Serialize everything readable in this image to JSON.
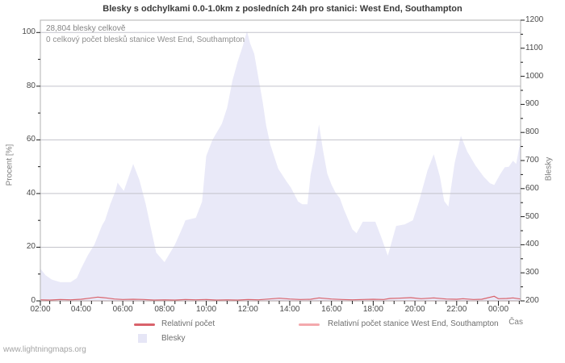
{
  "watermark": "www.lightningmaps.org",
  "colors": {
    "area_fill": "#e9e9f8",
    "line_relative": "#d9626b",
    "line_station": "#f4a9ad",
    "grid": "#c3c3cb",
    "frame": "#b2b2b2",
    "tick": "#1a1a1a"
  },
  "chart_data": {
    "type": "area",
    "title": "Blesky s odchylkami 0.0-1.0km z posledních 24h pro stanici: West End, Southampton",
    "annotations": {
      "total": "28,804 blesky celkově",
      "station_total": "0 celkový počet blesků stanice West End, Southampton"
    },
    "x_axis": {
      "label": "Čas",
      "ticks": [
        "02:00",
        "04:00",
        "06:00",
        "08:00",
        "10:00",
        "12:00",
        "14:00",
        "16:00",
        "18:00",
        "20:00",
        "22:00",
        "00:00"
      ],
      "tick_hours": [
        2,
        4,
        6,
        8,
        10,
        12,
        14,
        16,
        18,
        20,
        22,
        24
      ],
      "hours_range": [
        2,
        25.08
      ],
      "minor_tick_every_hours": 0.5
    },
    "y_left": {
      "label": "Procent  [%]",
      "ticks": [
        0,
        20,
        40,
        60,
        80,
        100
      ],
      "range": [
        0,
        100
      ]
    },
    "y_right": {
      "label": "Blesky",
      "ticks": [
        200,
        300,
        400,
        500,
        600,
        700,
        800,
        900,
        1000,
        1100,
        1200
      ],
      "range": [
        200,
        1200
      ],
      "minor_tick_step": 50
    },
    "legend_position": "bottom-center",
    "grid": "horizontal-only",
    "series": [
      {
        "name": "Blesky",
        "type": "area",
        "axis": "right",
        "color": "#e9e9f8",
        "points": [
          [
            2.0,
            315
          ],
          [
            2.3,
            291
          ],
          [
            2.6,
            276
          ],
          [
            3.0,
            267
          ],
          [
            3.5,
            267
          ],
          [
            3.8,
            281
          ],
          [
            4.0,
            315
          ],
          [
            4.33,
            363
          ],
          [
            4.64,
            401
          ],
          [
            5.0,
            468
          ],
          [
            5.15,
            487
          ],
          [
            5.4,
            544
          ],
          [
            5.65,
            592
          ],
          [
            5.75,
            621
          ],
          [
            6.05,
            592
          ],
          [
            6.5,
            688
          ],
          [
            6.8,
            630
          ],
          [
            7.1,
            544
          ],
          [
            7.35,
            458
          ],
          [
            7.6,
            372
          ],
          [
            8.0,
            338
          ],
          [
            8.5,
            401
          ],
          [
            8.9,
            468
          ],
          [
            9.0,
            487
          ],
          [
            9.5,
            496
          ],
          [
            9.8,
            554
          ],
          [
            10.0,
            716
          ],
          [
            10.3,
            774
          ],
          [
            10.75,
            831
          ],
          [
            11.0,
            888
          ],
          [
            11.25,
            984
          ],
          [
            11.5,
            1051
          ],
          [
            11.75,
            1108
          ],
          [
            11.95,
            1161
          ],
          [
            12.1,
            1118
          ],
          [
            12.3,
            1080
          ],
          [
            12.5,
            994
          ],
          [
            12.7,
            912
          ],
          [
            12.87,
            826
          ],
          [
            13.07,
            757
          ],
          [
            13.45,
            671
          ],
          [
            13.85,
            625
          ],
          [
            14.05,
            604
          ],
          [
            14.4,
            554
          ],
          [
            14.6,
            544
          ],
          [
            14.85,
            544
          ],
          [
            15.0,
            649
          ],
          [
            15.2,
            726
          ],
          [
            15.4,
            829
          ],
          [
            15.6,
            735
          ],
          [
            15.8,
            653
          ],
          [
            16.0,
            614
          ],
          [
            16.2,
            585
          ],
          [
            16.4,
            566
          ],
          [
            16.6,
            525
          ],
          [
            17.0,
            455
          ],
          [
            17.2,
            441
          ],
          [
            17.5,
            482
          ],
          [
            18.1,
            482
          ],
          [
            18.4,
            424
          ],
          [
            18.7,
            361
          ],
          [
            19.1,
            467
          ],
          [
            19.5,
            472
          ],
          [
            19.9,
            487
          ],
          [
            20.2,
            556
          ],
          [
            20.6,
            664
          ],
          [
            20.9,
            722
          ],
          [
            21.2,
            642
          ],
          [
            21.4,
            556
          ],
          [
            21.6,
            536
          ],
          [
            21.9,
            690
          ],
          [
            22.2,
            788
          ],
          [
            22.5,
            733
          ],
          [
            22.9,
            682
          ],
          [
            23.3,
            642
          ],
          [
            23.6,
            619
          ],
          [
            23.8,
            613
          ],
          [
            24.1,
            653
          ],
          [
            24.3,
            676
          ],
          [
            24.5,
            678
          ],
          [
            24.7,
            699
          ],
          [
            24.85,
            688
          ],
          [
            25.0,
            748
          ],
          [
            25.08,
            774
          ]
        ]
      },
      {
        "name": "Relativní počet",
        "type": "line",
        "axis": "left",
        "color": "#d9626b",
        "points": [
          [
            2.0,
            0.4
          ],
          [
            2.5,
            0.3
          ],
          [
            3.0,
            0.5
          ],
          [
            3.5,
            0.4
          ],
          [
            4.0,
            0.6
          ],
          [
            4.4,
            1.0
          ],
          [
            4.8,
            1.4
          ],
          [
            5.2,
            1.1
          ],
          [
            5.6,
            0.7
          ],
          [
            6.0,
            0.5
          ],
          [
            6.5,
            0.6
          ],
          [
            7.0,
            0.5
          ],
          [
            7.5,
            0.3
          ],
          [
            8.0,
            0.4
          ],
          [
            8.5,
            0.3
          ],
          [
            9.0,
            0.5
          ],
          [
            9.5,
            0.4
          ],
          [
            10.0,
            0.5
          ],
          [
            10.5,
            0.3
          ],
          [
            11.0,
            0.4
          ],
          [
            11.5,
            0.3
          ],
          [
            12.0,
            0.5
          ],
          [
            12.5,
            0.4
          ],
          [
            13.0,
            0.7
          ],
          [
            13.5,
            1.0
          ],
          [
            14.0,
            0.7
          ],
          [
            14.5,
            0.5
          ],
          [
            15.0,
            0.6
          ],
          [
            15.4,
            1.1
          ],
          [
            16.0,
            0.7
          ],
          [
            16.5,
            0.5
          ],
          [
            17.0,
            0.4
          ],
          [
            17.5,
            0.5
          ],
          [
            18.0,
            0.6
          ],
          [
            18.5,
            0.5
          ],
          [
            18.8,
            0.9
          ],
          [
            19.2,
            1.0
          ],
          [
            19.8,
            1.2
          ],
          [
            20.3,
            0.8
          ],
          [
            20.9,
            1.1
          ],
          [
            21.5,
            0.7
          ],
          [
            22.0,
            0.6
          ],
          [
            22.3,
            0.8
          ],
          [
            22.8,
            0.5
          ],
          [
            23.2,
            0.6
          ],
          [
            23.8,
            1.7
          ],
          [
            24.0,
            0.8
          ],
          [
            24.4,
            0.9
          ],
          [
            24.7,
            1.1
          ],
          [
            25.08,
            0.7
          ]
        ]
      },
      {
        "name": "Relativní počet stanice West End, Southampton",
        "type": "line",
        "axis": "left",
        "color": "#f4a9ad",
        "points": [
          [
            2.0,
            0
          ],
          [
            25.08,
            0
          ]
        ]
      }
    ]
  }
}
